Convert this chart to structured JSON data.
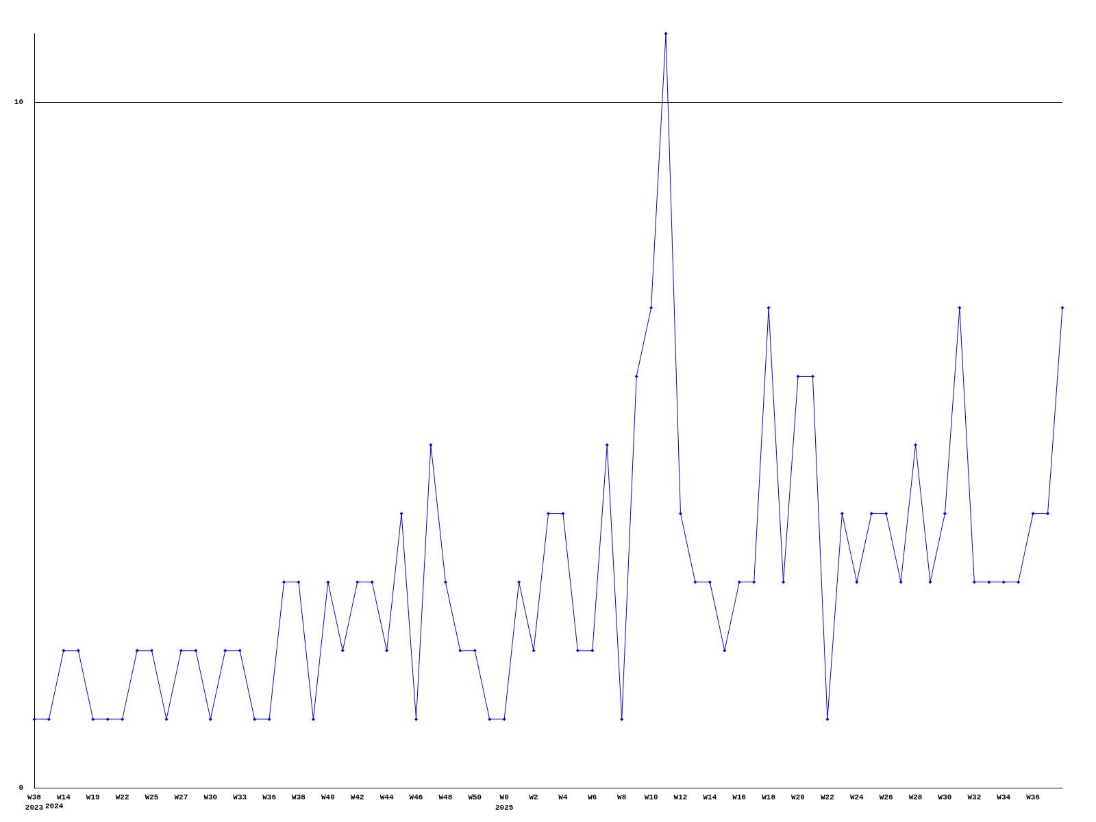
{
  "chart_data": {
    "type": "line",
    "categories": [
      "W38\n2023",
      null,
      "W14",
      null,
      "W19",
      null,
      "W22",
      null,
      "W25",
      null,
      "W27",
      null,
      "W30",
      null,
      "W33",
      null,
      "W36",
      null,
      "W38",
      null,
      "W40",
      null,
      "W42",
      null,
      "W44",
      null,
      "W46",
      null,
      "W48",
      null,
      "W50",
      null,
      "W0\n2025",
      null,
      "W2",
      null,
      "W4",
      null,
      "W6",
      null,
      "W8",
      null,
      "W10",
      null,
      "W12",
      null,
      "W14",
      null,
      "W16",
      null,
      "W18",
      null,
      "W20",
      null,
      "W22",
      null,
      "W24",
      null,
      "W26",
      null,
      "W28",
      null,
      "W30",
      null,
      "W32",
      null,
      "W34",
      null,
      "W36",
      null,
      null
    ],
    "series": [
      {
        "color": "#0000ff",
        "values": [
          1,
          1,
          2,
          2,
          1,
          1,
          1,
          2,
          2,
          1,
          2,
          2,
          1,
          2,
          2,
          1,
          1,
          3,
          3,
          1,
          3,
          2,
          3,
          3,
          2,
          4,
          1,
          5,
          3,
          2,
          2,
          1,
          1,
          3,
          2,
          4,
          4,
          2,
          2,
          5,
          1,
          6,
          7,
          11,
          4,
          3,
          3,
          2,
          3,
          3,
          7,
          3,
          6,
          6,
          1,
          4,
          3,
          4,
          4,
          3,
          5,
          3,
          4,
          7,
          3,
          3,
          3,
          3,
          4,
          4,
          7
        ]
      }
    ],
    "annotations": [
      "2024"
    ],
    "ylim": [
      0,
      11
    ],
    "yticks": [
      0,
      10
    ],
    "grid": "y",
    "marker": "diamond",
    "line_style": "solid"
  }
}
